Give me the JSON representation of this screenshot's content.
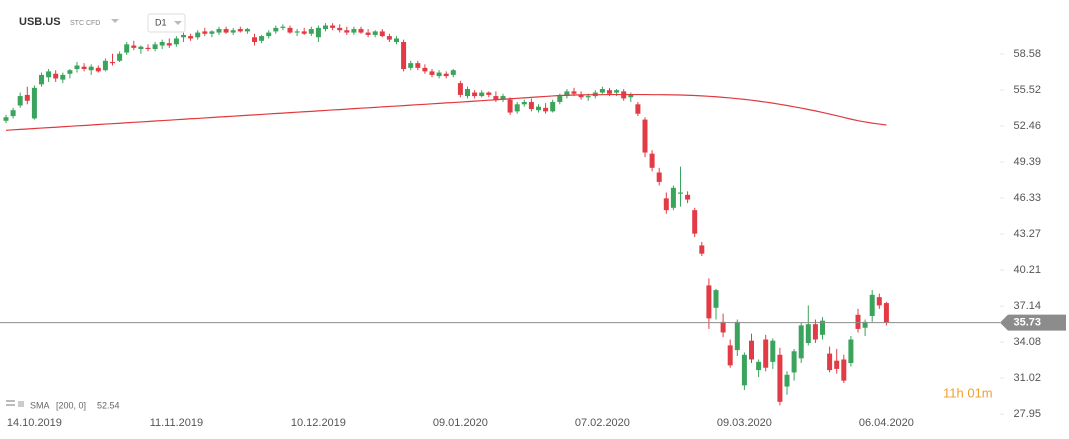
{
  "chart_data": {
    "type": "candlestick",
    "symbol": "USB.US",
    "instrument_type": "STC CFD",
    "timeframe": "D1",
    "countdown": "11h 01m",
    "categories": [
      null,
      null,
      null,
      null,
      "14.10.2019",
      null,
      null,
      null,
      null,
      null,
      null,
      null,
      null,
      null,
      null,
      null,
      null,
      null,
      null,
      null,
      null,
      null,
      null,
      null,
      "11.11.2019",
      null,
      null,
      null,
      null,
      null,
      null,
      null,
      null,
      null,
      null,
      null,
      null,
      null,
      null,
      null,
      null,
      null,
      null,
      null,
      "10.12.2019",
      null,
      null,
      null,
      null,
      null,
      null,
      null,
      null,
      null,
      null,
      null,
      null,
      null,
      null,
      null,
      null,
      null,
      null,
      null,
      "09.01.2020",
      null,
      null,
      null,
      null,
      null,
      null,
      null,
      null,
      null,
      null,
      null,
      null,
      null,
      null,
      null,
      null,
      null,
      null,
      null,
      "07.02.2020",
      null,
      null,
      null,
      null,
      null,
      null,
      null,
      null,
      null,
      null,
      null,
      null,
      null,
      null,
      null,
      null,
      null,
      null,
      null,
      "09.03.2020",
      null,
      null,
      null,
      null,
      null,
      null,
      null,
      null,
      null,
      null,
      null,
      null,
      null,
      null,
      null,
      null,
      null,
      null,
      null,
      "06.04.2020"
    ],
    "open": [
      52.9,
      53.3,
      54.2,
      55.1,
      53.1,
      56.0,
      56.6,
      56.9,
      56.4,
      56.9,
      57.3,
      57.5,
      57.2,
      57.4,
      57.2,
      57.9,
      58.0,
      58.7,
      59.3,
      59.0,
      59.1,
      59.0,
      59.3,
      59.5,
      59.4,
      60.0,
      60.1,
      60.0,
      60.5,
      60.3,
      60.4,
      60.7,
      60.4,
      60.7,
      60.5,
      60.0,
      59.7,
      60.1,
      60.5,
      60.8,
      60.8,
      60.4,
      60.5,
      60.3,
      60.0,
      60.7,
      61.0,
      60.8,
      60.6,
      60.4,
      60.7,
      60.4,
      60.2,
      60.5,
      60.1,
      59.6,
      59.6,
      57.4,
      57.8,
      57.4,
      57.1,
      56.7,
      56.9,
      56.8,
      56.1,
      55.0,
      55.3,
      55.0,
      55.3,
      55.0,
      54.7,
      54.7,
      53.7,
      54.3,
      54.5,
      53.8,
      54.0,
      53.7,
      54.5,
      55.0,
      55.4,
      55.1,
      54.9,
      55.0,
      55.3,
      55.5,
      55.3,
      55.4,
      54.9,
      54.3,
      53.0,
      50.1,
      48.5,
      46.3,
      45.5,
      46.7,
      46.6,
      45.3,
      42.3,
      38.9,
      37.0,
      35.8,
      33.8,
      33.4,
      30.4,
      34.2,
      31.7,
      34.3,
      32.4,
      33.0,
      30.3,
      31.5,
      32.7,
      34.0,
      35.6,
      34.7,
      33.1,
      32.5,
      32.6,
      32.3,
      36.4,
      35.3,
      36.3,
      37.9,
      37.4
    ],
    "high": [
      53.4,
      54.0,
      55.3,
      55.8,
      55.9,
      57.0,
      57.3,
      57.2,
      57.0,
      57.3,
      57.9,
      57.8,
      57.7,
      57.6,
      58.2,
      58.6,
      58.8,
      59.6,
      59.7,
      59.3,
      59.4,
      59.6,
      59.8,
      59.9,
      60.1,
      60.4,
      60.3,
      60.6,
      60.8,
      60.6,
      60.9,
      60.9,
      60.8,
      60.9,
      60.8,
      60.3,
      60.2,
      60.6,
      61.0,
      61.1,
      61.0,
      60.7,
      60.8,
      60.9,
      61.0,
      61.2,
      61.2,
      61.1,
      60.9,
      60.9,
      60.9,
      60.7,
      60.6,
      60.7,
      60.3,
      60.1,
      59.8,
      58.0,
      58.0,
      57.7,
      57.3,
      57.2,
      57.1,
      57.3,
      56.3,
      55.8,
      55.5,
      55.5,
      55.4,
      55.4,
      55.2,
      54.9,
      54.5,
      54.7,
      54.8,
      54.3,
      54.4,
      54.7,
      55.2,
      55.6,
      55.7,
      55.4,
      55.2,
      55.5,
      55.8,
      55.7,
      55.6,
      55.6,
      55.3,
      54.5,
      53.2,
      50.4,
      48.9,
      46.8,
      47.4,
      49.0,
      46.9,
      45.5,
      42.6,
      39.5,
      38.6,
      36.5,
      34.3,
      36.0,
      33.2,
      34.8,
      32.6,
      34.7,
      34.4,
      33.6,
      31.6,
      33.5,
      35.7,
      37.2,
      36.0,
      36.2,
      33.7,
      33.5,
      33.0,
      34.6,
      36.9,
      36.0,
      38.5,
      38.2,
      37.5
    ],
    "low": [
      52.7,
      53.1,
      54.0,
      54.3,
      53.0,
      55.8,
      56.2,
      56.2,
      56.1,
      56.5,
      57.0,
      57.1,
      56.8,
      57.0,
      57.1,
      57.6,
      57.9,
      58.5,
      58.9,
      58.6,
      58.8,
      58.8,
      59.0,
      59.1,
      59.2,
      59.6,
      59.7,
      59.8,
      60.1,
      60.0,
      60.2,
      60.3,
      60.2,
      60.4,
      60.3,
      59.3,
      59.5,
      59.9,
      60.3,
      60.6,
      60.3,
      60.1,
      60.2,
      60.1,
      59.6,
      60.5,
      60.6,
      60.4,
      60.2,
      60.2,
      60.3,
      60.0,
      60.0,
      60.0,
      59.6,
      59.4,
      57.1,
      57.2,
      57.2,
      56.9,
      56.6,
      56.5,
      56.5,
      56.6,
      54.9,
      54.8,
      54.8,
      54.9,
      54.9,
      54.5,
      54.5,
      53.4,
      53.5,
      54.1,
      53.7,
      53.6,
      53.5,
      53.6,
      54.3,
      54.8,
      55.0,
      54.7,
      54.6,
      54.8,
      55.2,
      55.0,
      55.0,
      54.6,
      54.5,
      53.3,
      49.8,
      48.6,
      47.4,
      45.0,
      45.3,
      45.6,
      45.9,
      43.0,
      41.4,
      35.2,
      36.0,
      34.5,
      31.9,
      32.9,
      30.0,
      32.3,
      31.1,
      31.6,
      31.8,
      28.7,
      29.6,
      30.8,
      32.3,
      33.8,
      34.0,
      34.3,
      31.5,
      31.4,
      30.6,
      32.0,
      34.9,
      34.6,
      35.8,
      36.9,
      35.5
    ],
    "close": [
      53.2,
      53.8,
      55.0,
      54.6,
      55.7,
      56.8,
      57.1,
      56.5,
      56.8,
      57.2,
      57.6,
      57.3,
      57.5,
      57.1,
      58.0,
      57.8,
      58.6,
      59.4,
      59.1,
      59.2,
      59.0,
      59.4,
      59.6,
      59.3,
      59.9,
      60.2,
      59.9,
      60.4,
      60.3,
      60.5,
      60.7,
      60.4,
      60.6,
      60.5,
      60.7,
      59.6,
      60.1,
      60.4,
      60.8,
      60.9,
      60.4,
      60.5,
      60.3,
      60.7,
      60.8,
      61.0,
      60.8,
      60.6,
      60.4,
      60.7,
      60.4,
      60.2,
      60.5,
      60.1,
      59.8,
      59.9,
      57.3,
      57.8,
      57.4,
      57.1,
      56.8,
      57.0,
      56.7,
      57.2,
      55.1,
      55.6,
      55.0,
      55.3,
      55.1,
      54.7,
      55.0,
      53.6,
      54.3,
      54.5,
      53.9,
      54.1,
      53.7,
      54.5,
      55.0,
      55.4,
      55.2,
      54.9,
      55.0,
      55.3,
      55.6,
      55.2,
      55.5,
      54.8,
      55.1,
      53.5,
      50.2,
      48.9,
      47.7,
      45.3,
      47.2,
      46.8,
      46.2,
      43.3,
      41.6,
      36.1,
      38.5,
      34.9,
      32.1,
      35.8,
      33.0,
      32.6,
      32.4,
      31.9,
      34.2,
      29.0,
      31.3,
      33.3,
      35.5,
      35.6,
      34.3,
      35.9,
      31.7,
      31.8,
      30.8,
      34.3,
      35.2,
      35.8,
      38.1,
      37.2,
      35.73
    ],
    "up_color": "#3aa35c",
    "down_color": "#e23b45",
    "sma": {
      "name": "SMA",
      "params": "[200, 0]",
      "last": 52.54,
      "color": "#e0393e",
      "values": [
        52.09,
        52.13,
        52.17,
        52.2,
        52.24,
        52.28,
        52.32,
        52.35,
        52.39,
        52.43,
        52.47,
        52.5,
        52.54,
        52.58,
        52.62,
        52.65,
        52.69,
        52.73,
        52.77,
        52.8,
        52.84,
        52.88,
        52.92,
        52.95,
        52.99,
        53.03,
        53.07,
        53.1,
        53.14,
        53.18,
        53.22,
        53.25,
        53.29,
        53.33,
        53.37,
        53.4,
        53.44,
        53.48,
        53.52,
        53.55,
        53.59,
        53.63,
        53.67,
        53.7,
        53.74,
        53.78,
        53.82,
        53.85,
        53.89,
        53.93,
        53.97,
        54.0,
        54.04,
        54.08,
        54.12,
        54.15,
        54.19,
        54.23,
        54.27,
        54.3,
        54.34,
        54.38,
        54.42,
        54.45,
        54.49,
        54.53,
        54.57,
        54.61,
        54.65,
        54.69,
        54.73,
        54.77,
        54.81,
        54.85,
        54.89,
        54.93,
        54.97,
        55.01,
        55.05,
        55.07,
        55.09,
        55.1,
        55.11,
        55.12,
        55.12,
        55.13,
        55.13,
        55.13,
        55.13,
        55.13,
        55.13,
        55.12,
        55.12,
        55.11,
        55.1,
        55.09,
        55.07,
        55.05,
        55.02,
        54.98,
        54.94,
        54.89,
        54.84,
        54.78,
        54.72,
        54.65,
        54.57,
        54.49,
        54.4,
        54.3,
        54.2,
        54.09,
        53.98,
        53.86,
        53.74,
        53.61,
        53.47,
        53.33,
        53.18,
        53.04,
        52.91,
        52.8,
        52.7,
        52.62,
        52.54
      ]
    },
    "last_price": 35.73,
    "last_price_color": "#8c8c8c",
    "ylim": [
      27.88,
      63.17
    ],
    "yticks": [
      27.95,
      31.02,
      34.08,
      37.14,
      40.21,
      43.27,
      46.33,
      49.39,
      52.46,
      55.52,
      58.58
    ]
  }
}
